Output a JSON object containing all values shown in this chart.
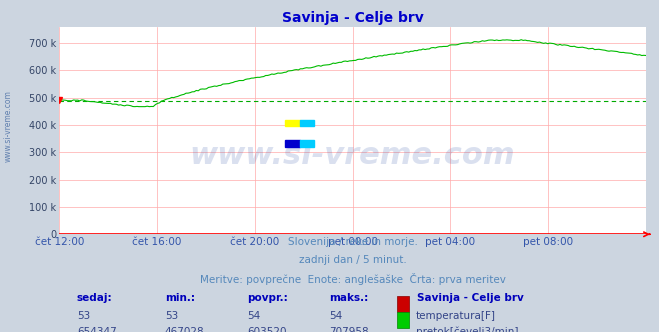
{
  "title": "Savinja - Celje brv",
  "title_color": "#0000cc",
  "bg_color": "#ccd5e0",
  "plot_bg_color": "#ffffff",
  "grid_color": "#ffaaaa",
  "avg_line_color": "#00aa00",
  "avg_line_value": 489000,
  "flow_color": "#00bb00",
  "temp_color": "#cc0000",
  "xtick_color": "#3355aa",
  "ytick_color": "#334466",
  "ylabel_ticks": [
    "0",
    "100 k",
    "200 k",
    "300 k",
    "400 k",
    "500 k",
    "600 k",
    "700 k"
  ],
  "ylabel_values": [
    0,
    100000,
    200000,
    300000,
    400000,
    500000,
    600000,
    700000
  ],
  "ylim": [
    0,
    760000
  ],
  "xtick_labels": [
    "čet 12:00",
    "čet 16:00",
    "čet 20:00",
    "pet 00:00",
    "pet 04:00",
    "pet 08:00"
  ],
  "xtick_positions": [
    0.0,
    0.1667,
    0.3333,
    0.5,
    0.6667,
    0.8333
  ],
  "watermark_text": "www.si-vreme.com",
  "watermark_color": "#3355aa",
  "watermark_alpha": 0.18,
  "side_text": "www.si-vreme.com",
  "side_text_color": "#5577aa",
  "subtitle1": "Slovenija / reke in morje.",
  "subtitle2": "zadnji dan / 5 minut.",
  "subtitle3": "Meritve: povprečne  Enote: anglešaške  Črta: prva meritev",
  "subtitle_color": "#5588bb",
  "legend_title": "Savinja - Celje brv",
  "legend_title_color": "#0000bb",
  "legend_temp_label": "temperatura[F]",
  "legend_flow_label": "pretok[čevelj3/min]",
  "stat_headers": [
    "sedaj:",
    "min.:",
    "povpr.:",
    "maks.:"
  ],
  "stat_header_color": "#0000bb",
  "stat_value_color": "#334488",
  "stat_temp": [
    53,
    53,
    54,
    54
  ],
  "stat_flow": [
    654347,
    467028,
    603520,
    707958
  ],
  "n_points": 288,
  "temp_value": 53,
  "logo_colors": [
    "#ffff00",
    "#00aaff",
    "#0000cc",
    "#00aaff"
  ]
}
